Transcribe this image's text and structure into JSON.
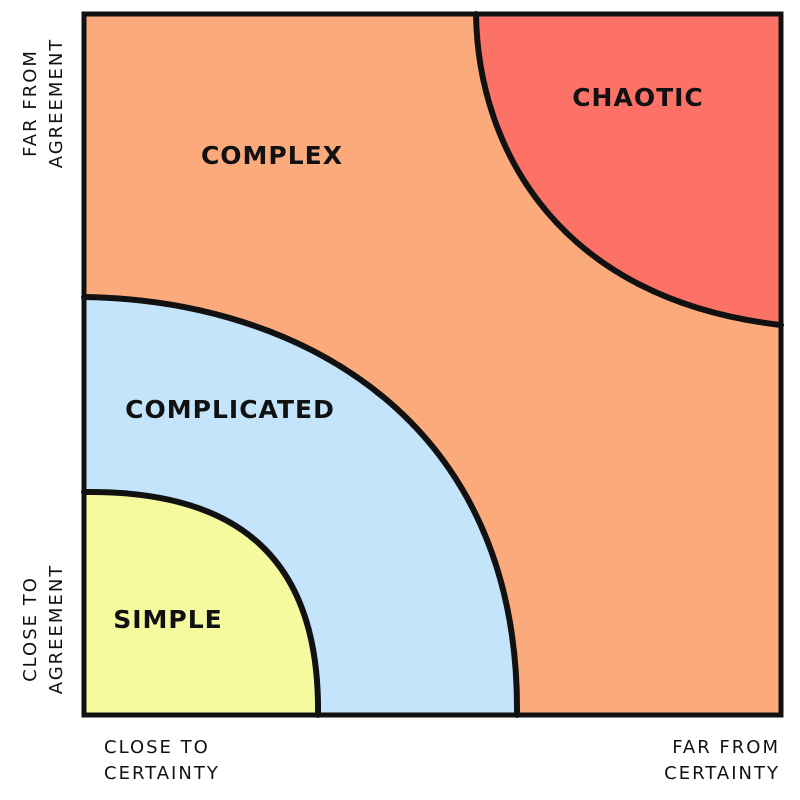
{
  "regions": {
    "simple": {
      "label": "SIMPLE",
      "color": "#f6fa9e"
    },
    "complicated": {
      "label": "COMPLICATED",
      "color": "#c3e4fa"
    },
    "complex": {
      "label": "COMPLEX",
      "color": "#fbaa7b"
    },
    "chaotic": {
      "label": "CHAOTIC",
      "color": "#fc7266"
    }
  },
  "axes": {
    "y_top": [
      "FAR FROM",
      "AGREEMENT"
    ],
    "y_bottom": [
      "CLOSE TO",
      "AGREEMENT"
    ],
    "x_left": [
      "CLOSE TO",
      "CERTAINTY"
    ],
    "x_right": [
      "FAR FROM",
      "CERTAINTY"
    ]
  }
}
